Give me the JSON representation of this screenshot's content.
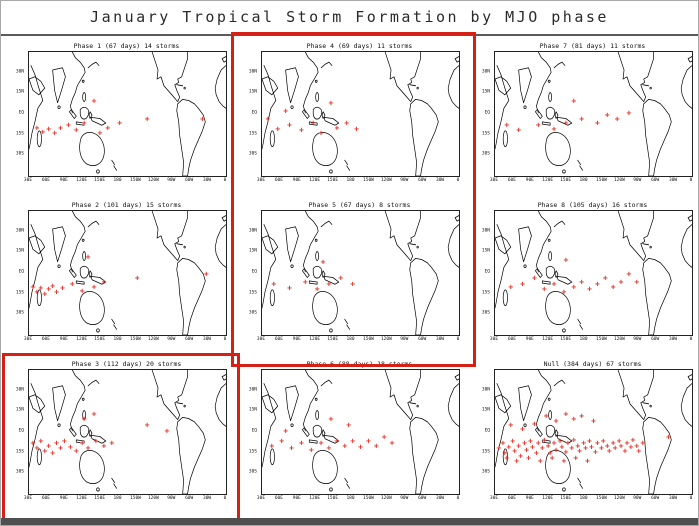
{
  "header": {
    "title": "January Tropical Storm Formation by MJO phase"
  },
  "chart_data": {
    "type": "scatter",
    "title": "January Tropical Storm Formation by MJO phase",
    "layout": "3x3 grid of world maps, storm formation points marked with red plus signs",
    "marker_symbol": "+",
    "marker_color": "#e03228",
    "highlight_color": "#d42015",
    "x_ticks": [
      "30E",
      "60E",
      "90E",
      "120E",
      "150E",
      "180",
      "150W",
      "120W",
      "90W",
      "60W",
      "30W",
      "0"
    ],
    "y_ticks": [
      "30N",
      "15N",
      "EQ",
      "15S",
      "30S"
    ],
    "highlights": {
      "middle_column_box": [
        "Phase 4",
        "Phase 5"
      ],
      "bottom_left_box": [
        "Phase 3"
      ]
    },
    "panels": [
      {
        "label": "Phase 1 (67 days) 14 storms",
        "phase": "Phase 1",
        "days": 67,
        "storms": 14,
        "markers": [
          [
            4,
            62
          ],
          [
            7,
            65
          ],
          [
            10,
            63
          ],
          [
            13,
            66
          ],
          [
            16,
            62
          ],
          [
            20,
            60
          ],
          [
            24,
            64
          ],
          [
            28,
            58
          ],
          [
            33,
            40
          ],
          [
            36,
            66
          ],
          [
            40,
            62
          ],
          [
            46,
            58
          ],
          [
            60,
            55
          ],
          [
            88,
            55
          ]
        ]
      },
      {
        "label": "Phase 4 (69 days) 11 storms",
        "phase": "Phase 4",
        "days": 69,
        "storms": 11,
        "markers": [
          [
            3,
            55
          ],
          [
            8,
            63
          ],
          [
            14,
            60
          ],
          [
            20,
            64
          ],
          [
            26,
            58
          ],
          [
            30,
            66
          ],
          [
            35,
            42
          ],
          [
            38,
            62
          ],
          [
            43,
            58
          ],
          [
            48,
            63
          ],
          [
            12,
            48
          ]
        ]
      },
      {
        "label": "Phase 7 (81 days) 11 storms",
        "phase": "Phase 7",
        "days": 81,
        "storms": 11,
        "markers": [
          [
            6,
            60
          ],
          [
            12,
            64
          ],
          [
            22,
            60
          ],
          [
            30,
            63
          ],
          [
            36,
            58
          ],
          [
            44,
            55
          ],
          [
            52,
            58
          ],
          [
            57,
            52
          ],
          [
            62,
            55
          ],
          [
            68,
            50
          ],
          [
            40,
            40
          ]
        ]
      },
      {
        "label": "Phase 2 (101 days) 15 storms",
        "phase": "Phase 2",
        "days": 101,
        "storms": 15,
        "markers": [
          [
            2,
            62
          ],
          [
            4,
            66
          ],
          [
            6,
            63
          ],
          [
            8,
            68
          ],
          [
            10,
            64
          ],
          [
            12,
            61
          ],
          [
            14,
            66
          ],
          [
            17,
            63
          ],
          [
            22,
            60
          ],
          [
            27,
            65
          ],
          [
            33,
            62
          ],
          [
            38,
            58
          ],
          [
            30,
            38
          ],
          [
            55,
            55
          ],
          [
            90,
            52
          ]
        ]
      },
      {
        "label": "Phase 5 (67 days)  8 storms",
        "phase": "Phase 5",
        "days": 67,
        "storms": 8,
        "markers": [
          [
            6,
            60
          ],
          [
            14,
            63
          ],
          [
            22,
            58
          ],
          [
            28,
            64
          ],
          [
            34,
            60
          ],
          [
            40,
            55
          ],
          [
            46,
            60
          ],
          [
            31,
            42
          ]
        ]
      },
      {
        "label": "Phase 8 (105 days) 16 storms",
        "phase": "Phase 8",
        "days": 105,
        "storms": 16,
        "markers": [
          [
            8,
            62
          ],
          [
            14,
            60
          ],
          [
            25,
            64
          ],
          [
            30,
            60
          ],
          [
            35,
            66
          ],
          [
            40,
            62
          ],
          [
            44,
            58
          ],
          [
            48,
            64
          ],
          [
            52,
            60
          ],
          [
            56,
            55
          ],
          [
            60,
            62
          ],
          [
            64,
            58
          ],
          [
            36,
            40
          ],
          [
            20,
            55
          ],
          [
            68,
            52
          ],
          [
            72,
            58
          ]
        ]
      },
      {
        "label": "Phase 3 (112 days) 20 storms",
        "phase": "Phase 3",
        "days": 112,
        "storms": 20,
        "markers": [
          [
            2,
            60
          ],
          [
            4,
            64
          ],
          [
            6,
            58
          ],
          [
            8,
            66
          ],
          [
            10,
            62
          ],
          [
            12,
            68
          ],
          [
            14,
            60
          ],
          [
            16,
            64
          ],
          [
            18,
            58
          ],
          [
            21,
            63
          ],
          [
            24,
            66
          ],
          [
            27,
            60
          ],
          [
            30,
            64
          ],
          [
            34,
            58
          ],
          [
            38,
            62
          ],
          [
            42,
            60
          ],
          [
            28,
            40
          ],
          [
            33,
            36
          ],
          [
            60,
            45
          ],
          [
            70,
            50
          ]
        ]
      },
      {
        "label": "Phase 6 (88 days) 18 storms",
        "phase": "Phase 6",
        "days": 88,
        "storms": 18,
        "markers": [
          [
            5,
            62
          ],
          [
            10,
            58
          ],
          [
            15,
            64
          ],
          [
            20,
            60
          ],
          [
            25,
            65
          ],
          [
            30,
            60
          ],
          [
            34,
            64
          ],
          [
            38,
            58
          ],
          [
            42,
            62
          ],
          [
            46,
            58
          ],
          [
            50,
            63
          ],
          [
            54,
            58
          ],
          [
            58,
            62
          ],
          [
            35,
            40
          ],
          [
            62,
            55
          ],
          [
            66,
            60
          ],
          [
            12,
            50
          ],
          [
            44,
            45
          ]
        ]
      },
      {
        "label": "Null (384 days)  67 storms",
        "phase": "Null",
        "days": 384,
        "storms": 67,
        "markers": [
          [
            2,
            64
          ],
          [
            4,
            60
          ],
          [
            5,
            68
          ],
          [
            7,
            63
          ],
          [
            9,
            58
          ],
          [
            10,
            66
          ],
          [
            12,
            62
          ],
          [
            13,
            70
          ],
          [
            15,
            60
          ],
          [
            16,
            65
          ],
          [
            18,
            58
          ],
          [
            19,
            63
          ],
          [
            21,
            68
          ],
          [
            22,
            60
          ],
          [
            24,
            64
          ],
          [
            25,
            57
          ],
          [
            27,
            62
          ],
          [
            28,
            68
          ],
          [
            30,
            60
          ],
          [
            31,
            65
          ],
          [
            33,
            58
          ],
          [
            34,
            63
          ],
          [
            36,
            67
          ],
          [
            37,
            60
          ],
          [
            39,
            64
          ],
          [
            40,
            57
          ],
          [
            42,
            62
          ],
          [
            43,
            66
          ],
          [
            45,
            60
          ],
          [
            46,
            64
          ],
          [
            48,
            58
          ],
          [
            49,
            63
          ],
          [
            51,
            67
          ],
          [
            52,
            60
          ],
          [
            54,
            64
          ],
          [
            55,
            58
          ],
          [
            57,
            62
          ],
          [
            58,
            66
          ],
          [
            60,
            60
          ],
          [
            61,
            64
          ],
          [
            63,
            58
          ],
          [
            64,
            62
          ],
          [
            66,
            66
          ],
          [
            67,
            60
          ],
          [
            69,
            63
          ],
          [
            70,
            57
          ],
          [
            72,
            62
          ],
          [
            73,
            66
          ],
          [
            75,
            60
          ],
          [
            6,
            72
          ],
          [
            11,
            74
          ],
          [
            17,
            72
          ],
          [
            23,
            74
          ],
          [
            29,
            72
          ],
          [
            35,
            74
          ],
          [
            41,
            72
          ],
          [
            47,
            74
          ],
          [
            26,
            38
          ],
          [
            31,
            42
          ],
          [
            36,
            36
          ],
          [
            40,
            40
          ],
          [
            44,
            38
          ],
          [
            50,
            42
          ],
          [
            8,
            45
          ],
          [
            14,
            48
          ],
          [
            20,
            44
          ],
          [
            88,
            55
          ]
        ]
      }
    ]
  }
}
